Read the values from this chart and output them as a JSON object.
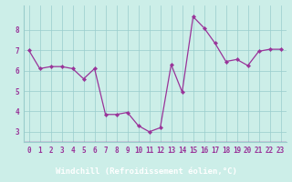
{
  "x": [
    0,
    1,
    2,
    3,
    4,
    5,
    6,
    7,
    8,
    9,
    10,
    11,
    12,
    13,
    14,
    15,
    16,
    17,
    18,
    19,
    20,
    21,
    22,
    23
  ],
  "y": [
    7.0,
    6.1,
    6.2,
    6.2,
    6.1,
    5.6,
    6.1,
    3.85,
    3.85,
    3.95,
    3.3,
    3.0,
    3.2,
    6.3,
    4.95,
    8.65,
    8.1,
    7.35,
    6.45,
    6.55,
    6.25,
    6.95,
    7.05,
    7.05
  ],
  "line_color": "#993399",
  "marker_color": "#993399",
  "bg_color": "#cceee8",
  "grid_color": "#99cccc",
  "bottom_bar_color": "#993399",
  "bottom_bar_text_color": "#ffffff",
  "tick_text_color": "#993399",
  "xlabel": "Windchill (Refroidissement éolien,°C)",
  "ylim": [
    2.5,
    9.2
  ],
  "xlim": [
    -0.5,
    23.5
  ],
  "yticks": [
    3,
    4,
    5,
    6,
    7,
    8
  ],
  "xtick_labels": [
    "0",
    "1",
    "2",
    "3",
    "4",
    "5",
    "6",
    "7",
    "8",
    "9",
    "10",
    "11",
    "12",
    "13",
    "14",
    "15",
    "16",
    "17",
    "18",
    "19",
    "20",
    "21",
    "22",
    "23"
  ],
  "tick_fontsize": 5.5,
  "xlabel_fontsize": 6.5
}
